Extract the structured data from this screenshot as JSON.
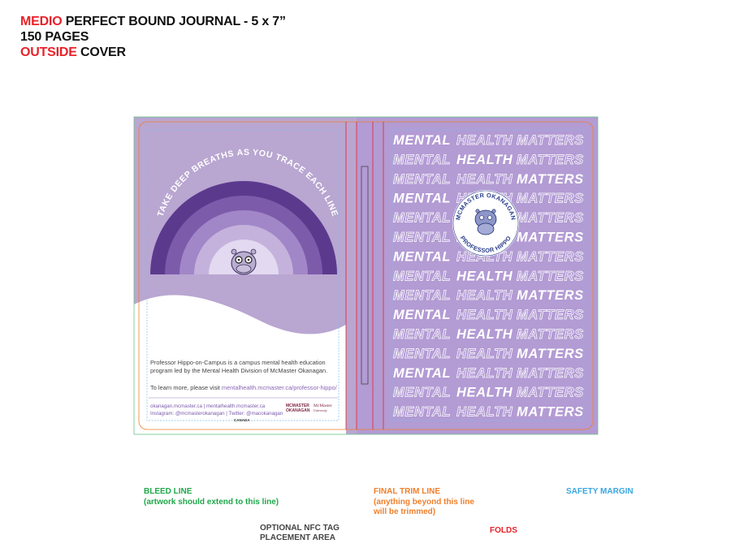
{
  "header": {
    "line1_accent": "MEDIO",
    "line1_rest": "PERFECT BOUND JOURNAL - 5 x 7”",
    "line2": "150 PAGES",
    "line3_accent": "OUTSIDE",
    "line3_rest": "COVER"
  },
  "back_cover": {
    "arc_text": "TAKE DEEP BREATHS AS YOU TRACE EACH LINE",
    "paragraph_1": "Professor Hippo-on-Campus is a campus mental health education program led by the Mental Health Division of McMaster Okanagan.",
    "paragraph_2_prefix": "To learn more, please visit",
    "paragraph_2_link": "mentalhealth.mcmaster.ca/professor-hippo/",
    "footer_links": "okanagan.mcmaster.ca | mentalhealth.mcmaster.ca",
    "footer_social": "Instagram: @mcmasterokanagan | Twitter: @macokanagan",
    "logo_1_line1": "MCMASTER",
    "logo_1_line2": "OKANAGAN",
    "logo_2_line1": "McMaster",
    "logo_2_line2": "University",
    "canada": "CANADA",
    "colors": {
      "bg": "#b9a6d1",
      "arc_1": "#5b3a8e",
      "arc_2": "#7d5bab",
      "arc_3": "#a187c7",
      "arc_4": "#c4b2dc",
      "arc_5": "#e3d9f0"
    }
  },
  "front_cover": {
    "words": [
      "MENTAL",
      "HEALTH",
      "MATTERS"
    ],
    "rows": [
      [
        true,
        false,
        false
      ],
      [
        false,
        true,
        false
      ],
      [
        false,
        false,
        true
      ],
      [
        true,
        false,
        false
      ],
      [
        false,
        false,
        false
      ],
      [
        false,
        false,
        true
      ],
      [
        true,
        false,
        false
      ],
      [
        false,
        true,
        false
      ],
      [
        false,
        false,
        true
      ],
      [
        true,
        false,
        false
      ],
      [
        false,
        true,
        false
      ],
      [
        false,
        false,
        true
      ],
      [
        true,
        false,
        false
      ],
      [
        false,
        true,
        false
      ],
      [
        false,
        false,
        true
      ]
    ],
    "badge_top": "MCMASTER OKANAGAN",
    "badge_bottom": "PROFESSOR HIPPO",
    "colors": {
      "bg": "#b39bd4",
      "badge_ring": "#2b3f8c"
    }
  },
  "legend": {
    "bleed_title": "BLEED LINE",
    "bleed_sub": "(artwork should extend to this line)",
    "trim_title": "FINAL TRIM LINE",
    "trim_sub_1": "(anything beyond this line",
    "trim_sub_2": "will be trimmed)",
    "safety": "SAFETY MARGIN",
    "nfc_1": "OPTIONAL NFC TAG",
    "nfc_2": "PLACEMENT AREA",
    "folds": "FOLDS",
    "colors": {
      "bleed": "#1fa84a",
      "trim": "#f07f2b",
      "safety": "#3aa7e0",
      "folds": "#e8222a"
    }
  }
}
